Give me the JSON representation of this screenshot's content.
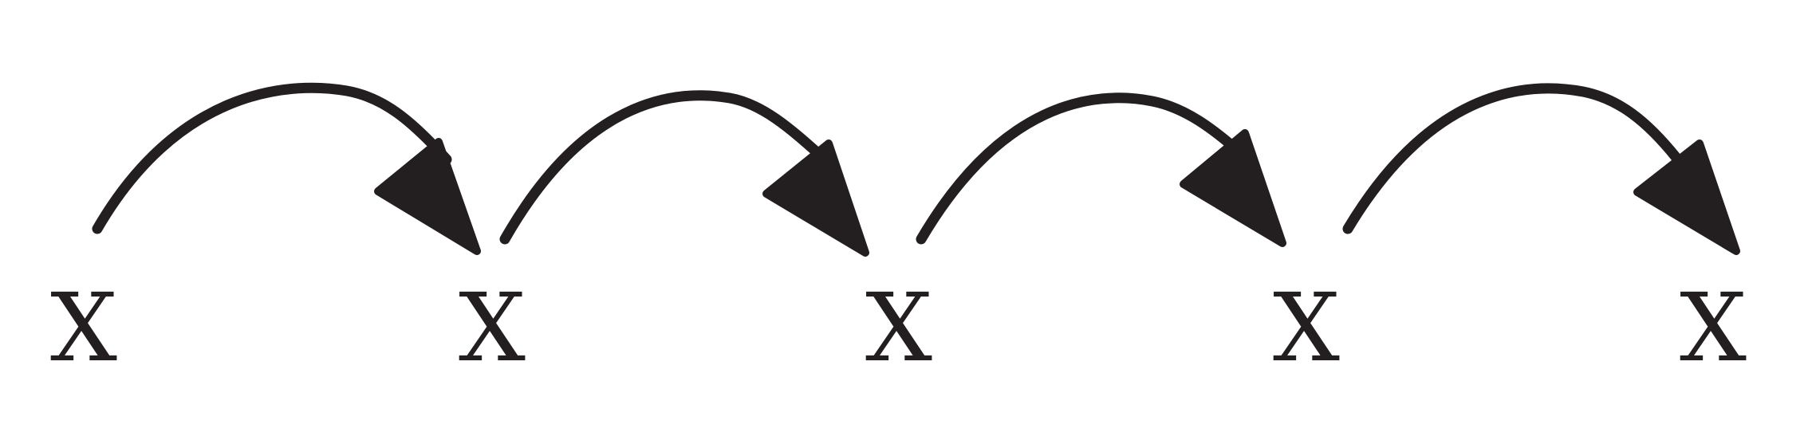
{
  "diagram": {
    "stroke_color": "#231f20",
    "background_color": "#ffffff",
    "nodes": [
      {
        "label": "X"
      },
      {
        "label": "X"
      },
      {
        "label": "X"
      },
      {
        "label": "X"
      },
      {
        "label": "X"
      }
    ],
    "arrows": [
      {
        "from": 0,
        "to": 1
      },
      {
        "from": 1,
        "to": 2
      },
      {
        "from": 2,
        "to": 3
      },
      {
        "from": 3,
        "to": 4
      }
    ]
  }
}
